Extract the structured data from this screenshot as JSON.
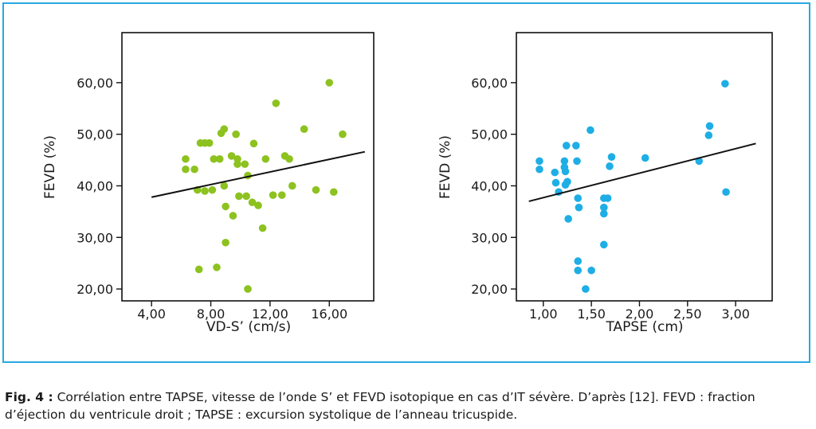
{
  "colors": {
    "frame": "#29a9e0",
    "left_points": "#8dc21f",
    "right_points": "#1eaee5",
    "line": "#111111"
  },
  "chart_data": [
    {
      "type": "scatter",
      "xlabel": "VD-S’ (cm/s)",
      "ylabel": "FEVD (%)",
      "xticks": [
        "4,00",
        "8,00",
        "12,00",
        "16,00"
      ],
      "xtick_values": [
        4,
        8,
        12,
        16
      ],
      "yticks": [
        "20,00",
        "30,00",
        "40,00",
        "50,00",
        "60,00"
      ],
      "ytick_values": [
        20,
        30,
        40,
        50,
        60
      ],
      "xlim": [
        2.0,
        19.0
      ],
      "ylim": [
        17.7,
        69.7
      ],
      "points": [
        [
          6.3,
          45.2
        ],
        [
          6.3,
          43.2
        ],
        [
          6.9,
          43.2
        ],
        [
          7.1,
          39.2
        ],
        [
          7.3,
          48.3
        ],
        [
          7.6,
          48.3
        ],
        [
          7.9,
          48.3
        ],
        [
          7.6,
          39.0
        ],
        [
          8.1,
          39.2
        ],
        [
          8.2,
          45.2
        ],
        [
          7.2,
          23.8
        ],
        [
          8.6,
          45.2
        ],
        [
          8.7,
          50.2
        ],
        [
          8.9,
          51.0
        ],
        [
          8.9,
          40.0
        ],
        [
          9.0,
          36.0
        ],
        [
          9.0,
          29.0
        ],
        [
          8.4,
          24.2
        ],
        [
          9.4,
          45.8
        ],
        [
          9.5,
          34.2
        ],
        [
          9.7,
          50.0
        ],
        [
          9.8,
          44.2
        ],
        [
          9.8,
          45.2
        ],
        [
          9.9,
          38.0
        ],
        [
          10.3,
          44.2
        ],
        [
          10.4,
          38.0
        ],
        [
          10.5,
          42.0
        ],
        [
          10.8,
          36.8
        ],
        [
          10.9,
          48.2
        ],
        [
          11.2,
          36.2
        ],
        [
          10.5,
          20.0
        ],
        [
          11.5,
          31.8
        ],
        [
          11.7,
          45.2
        ],
        [
          12.2,
          38.2
        ],
        [
          12.4,
          56.0
        ],
        [
          12.8,
          38.2
        ],
        [
          13.0,
          45.8
        ],
        [
          13.3,
          45.2
        ],
        [
          13.5,
          40.0
        ],
        [
          14.3,
          51.0
        ],
        [
          15.1,
          39.2
        ],
        [
          16.0,
          60.0
        ],
        [
          16.3,
          38.8
        ],
        [
          16.9,
          50.0
        ]
      ],
      "trend_line": {
        "x": [
          4.0,
          18.4
        ],
        "y": [
          37.8,
          46.6
        ]
      }
    },
    {
      "type": "scatter",
      "xlabel": "TAPSE (cm)",
      "ylabel": "FEVD (%)",
      "xticks": [
        "1,00",
        "1,50",
        "2,00",
        "2,50",
        "3,00"
      ],
      "xtick_values": [
        1.0,
        1.5,
        2.0,
        2.5,
        3.0
      ],
      "yticks": [
        "20,00",
        "30,00",
        "40,00",
        "50,00",
        "60,00"
      ],
      "ytick_values": [
        20,
        30,
        40,
        50,
        60
      ],
      "xlim": [
        0.72,
        3.38
      ],
      "ylim": [
        17.7,
        69.7
      ],
      "points": [
        [
          0.96,
          44.8
        ],
        [
          0.96,
          43.2
        ],
        [
          1.12,
          42.6
        ],
        [
          1.13,
          40.6
        ],
        [
          1.16,
          38.8
        ],
        [
          1.22,
          44.8
        ],
        [
          1.22,
          43.6
        ],
        [
          1.23,
          42.8
        ],
        [
          1.23,
          40.2
        ],
        [
          1.25,
          40.8
        ],
        [
          1.24,
          47.8
        ],
        [
          1.26,
          33.6
        ],
        [
          1.34,
          47.8
        ],
        [
          1.35,
          44.8
        ],
        [
          1.36,
          37.6
        ],
        [
          1.37,
          35.8
        ],
        [
          1.36,
          25.4
        ],
        [
          1.36,
          23.6
        ],
        [
          1.44,
          20.0
        ],
        [
          1.49,
          50.8
        ],
        [
          1.5,
          23.6
        ],
        [
          1.63,
          37.6
        ],
        [
          1.63,
          35.8
        ],
        [
          1.63,
          34.6
        ],
        [
          1.63,
          28.6
        ],
        [
          1.67,
          37.6
        ],
        [
          1.69,
          43.8
        ],
        [
          1.71,
          45.6
        ],
        [
          2.06,
          45.4
        ],
        [
          2.62,
          44.8
        ],
        [
          2.72,
          49.8
        ],
        [
          2.73,
          51.6
        ],
        [
          2.89,
          59.8
        ],
        [
          2.9,
          38.8
        ]
      ],
      "trend_line": {
        "x": [
          0.85,
          3.21
        ],
        "y": [
          37.0,
          48.2
        ]
      }
    }
  ],
  "caption": {
    "label": "Fig. 4 :",
    "text": " Corrélation entre TAPSE, vitesse de l’onde S’ et FEVD isotopique en cas d’IT sévère. D’après [12]. FEVD : fraction d’éjection du ventricule droit ; TAPSE : excursion systolique de l’anneau tricuspide."
  }
}
